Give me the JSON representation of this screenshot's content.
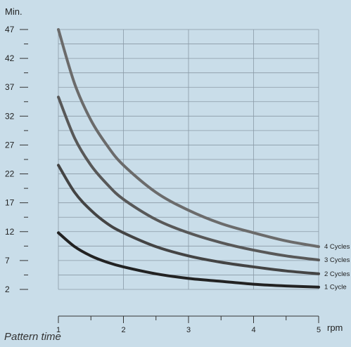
{
  "caption": "Pattern time",
  "chart_data": {
    "type": "line",
    "title": "",
    "ylabel": "Min.",
    "xlabel": "rpm",
    "xlim": [
      1,
      5
    ],
    "ylim": [
      2,
      47
    ],
    "x_ticks": [
      1,
      2,
      3,
      4,
      5
    ],
    "y_ticks": [
      2,
      7,
      12,
      17,
      22,
      27,
      32,
      37,
      42,
      47
    ],
    "grid": true,
    "series": [
      {
        "name": "4 Cycles",
        "color": "#6b6b6b",
        "x": [
          1,
          1.25,
          1.5,
          1.75,
          2,
          2.5,
          3,
          3.5,
          4,
          4.5,
          5
        ],
        "y": [
          47,
          37.6,
          31.3,
          26.9,
          23.5,
          18.8,
          15.7,
          13.4,
          11.8,
          10.4,
          9.4
        ]
      },
      {
        "name": "3 Cycles",
        "color": "#585858",
        "x": [
          1,
          1.25,
          1.5,
          1.75,
          2,
          2.5,
          3,
          3.5,
          4,
          4.5,
          5
        ],
        "y": [
          35.3,
          28.2,
          23.5,
          20.2,
          17.6,
          14.1,
          11.8,
          10.1,
          8.8,
          7.8,
          7.1
        ]
      },
      {
        "name": "2 Cycles",
        "color": "#444444",
        "x": [
          1,
          1.25,
          1.5,
          1.75,
          2,
          2.5,
          3,
          3.5,
          4,
          4.5,
          5
        ],
        "y": [
          23.5,
          18.8,
          15.7,
          13.4,
          11.8,
          9.4,
          7.8,
          6.7,
          5.9,
          5.2,
          4.7
        ]
      },
      {
        "name": "1 Cycle",
        "color": "#222222",
        "x": [
          1,
          1.25,
          1.5,
          1.75,
          2,
          2.5,
          3,
          3.5,
          4,
          4.5,
          5
        ],
        "y": [
          11.8,
          9.4,
          7.8,
          6.7,
          5.9,
          4.7,
          3.9,
          3.4,
          2.9,
          2.6,
          2.4
        ]
      }
    ]
  }
}
